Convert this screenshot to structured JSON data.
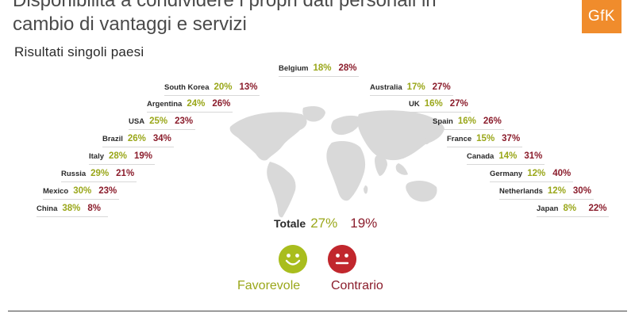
{
  "header": {
    "title_line1": "Disponibilità a condividere i propri dati personali in",
    "title_line2": "cambio di vantaggi e servizi",
    "subtitle": "Risultati singoli paesi",
    "logo_text": "GfK"
  },
  "countries_left": [
    {
      "name": "South Korea",
      "favorable": "20%",
      "against": "13%"
    },
    {
      "name": "Argentina",
      "favorable": "24%",
      "against": "26%"
    },
    {
      "name": "USA",
      "favorable": "25%",
      "against": "23%"
    },
    {
      "name": "Brazil",
      "favorable": "26%",
      "against": "34%"
    },
    {
      "name": "Italy",
      "favorable": "28%",
      "against": "19%"
    },
    {
      "name": "Russia",
      "favorable": "29%",
      "against": "21%"
    },
    {
      "name": "Mexico",
      "favorable": "30%",
      "against": "23%"
    },
    {
      "name": "China",
      "favorable": "38%",
      "against": "8%"
    }
  ],
  "country_top": {
    "name": "Belgium",
    "favorable": "18%",
    "against": "28%"
  },
  "countries_right": [
    {
      "name": "Australia",
      "favorable": "17%",
      "against": "27%"
    },
    {
      "name": "UK",
      "favorable": "16%",
      "against": "27%"
    },
    {
      "name": "Spain",
      "favorable": "16%",
      "against": "26%"
    },
    {
      "name": "France",
      "favorable": "15%",
      "against": "37%"
    },
    {
      "name": "Canada",
      "favorable": "14%",
      "against": "31%"
    },
    {
      "name": "Germany",
      "favorable": "12%",
      "against": "40%"
    },
    {
      "name": "Netherlands",
      "favorable": "12%",
      "against": "30%"
    },
    {
      "name": "Japan",
      "favorable": "8%",
      "against": "22%"
    }
  ],
  "total": {
    "label": "Totale",
    "favorable": "27%",
    "against": "19%"
  },
  "legend": {
    "favorable_label": "Favorevole",
    "against_label": "Contrario"
  },
  "colors": {
    "favorable": "#9aa71a",
    "against": "#8b1d2c",
    "logo": "#f08c2c",
    "map": "#d9d9d9"
  }
}
